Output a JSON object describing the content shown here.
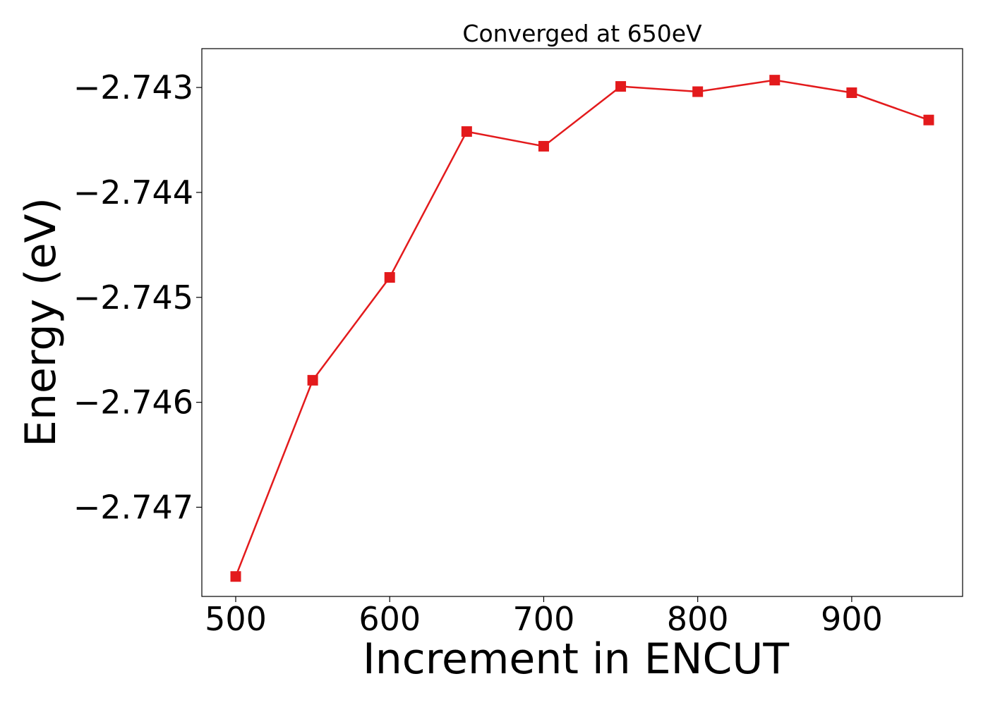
{
  "chart_data": {
    "type": "line",
    "title": "Converged at 650eV",
    "xlabel": "Increment in ENCUT",
    "ylabel": "Energy (eV)",
    "xlim": [
      478,
      972
    ],
    "ylim": [
      -2.74785,
      -2.74263
    ],
    "xticks": [
      500,
      600,
      700,
      800,
      900
    ],
    "xtick_labels": [
      "500",
      "600",
      "700",
      "800",
      "900"
    ],
    "yticks": [
      -2.743,
      -2.744,
      -2.745,
      -2.746,
      -2.747
    ],
    "ytick_labels": [
      "−2.743",
      "−2.744",
      "−2.745",
      "−2.746",
      "−2.747"
    ],
    "grid": false,
    "series": [
      {
        "color": "#e31a1c",
        "marker": "square",
        "x": [
          500,
          550,
          600,
          650,
          700,
          750,
          800,
          850,
          900,
          950
        ],
        "y": [
          -2.74766,
          -2.74579,
          -2.74481,
          -2.74342,
          -2.74356,
          -2.74299,
          -2.74304,
          -2.74293,
          -2.74305,
          -2.74331
        ]
      }
    ]
  }
}
